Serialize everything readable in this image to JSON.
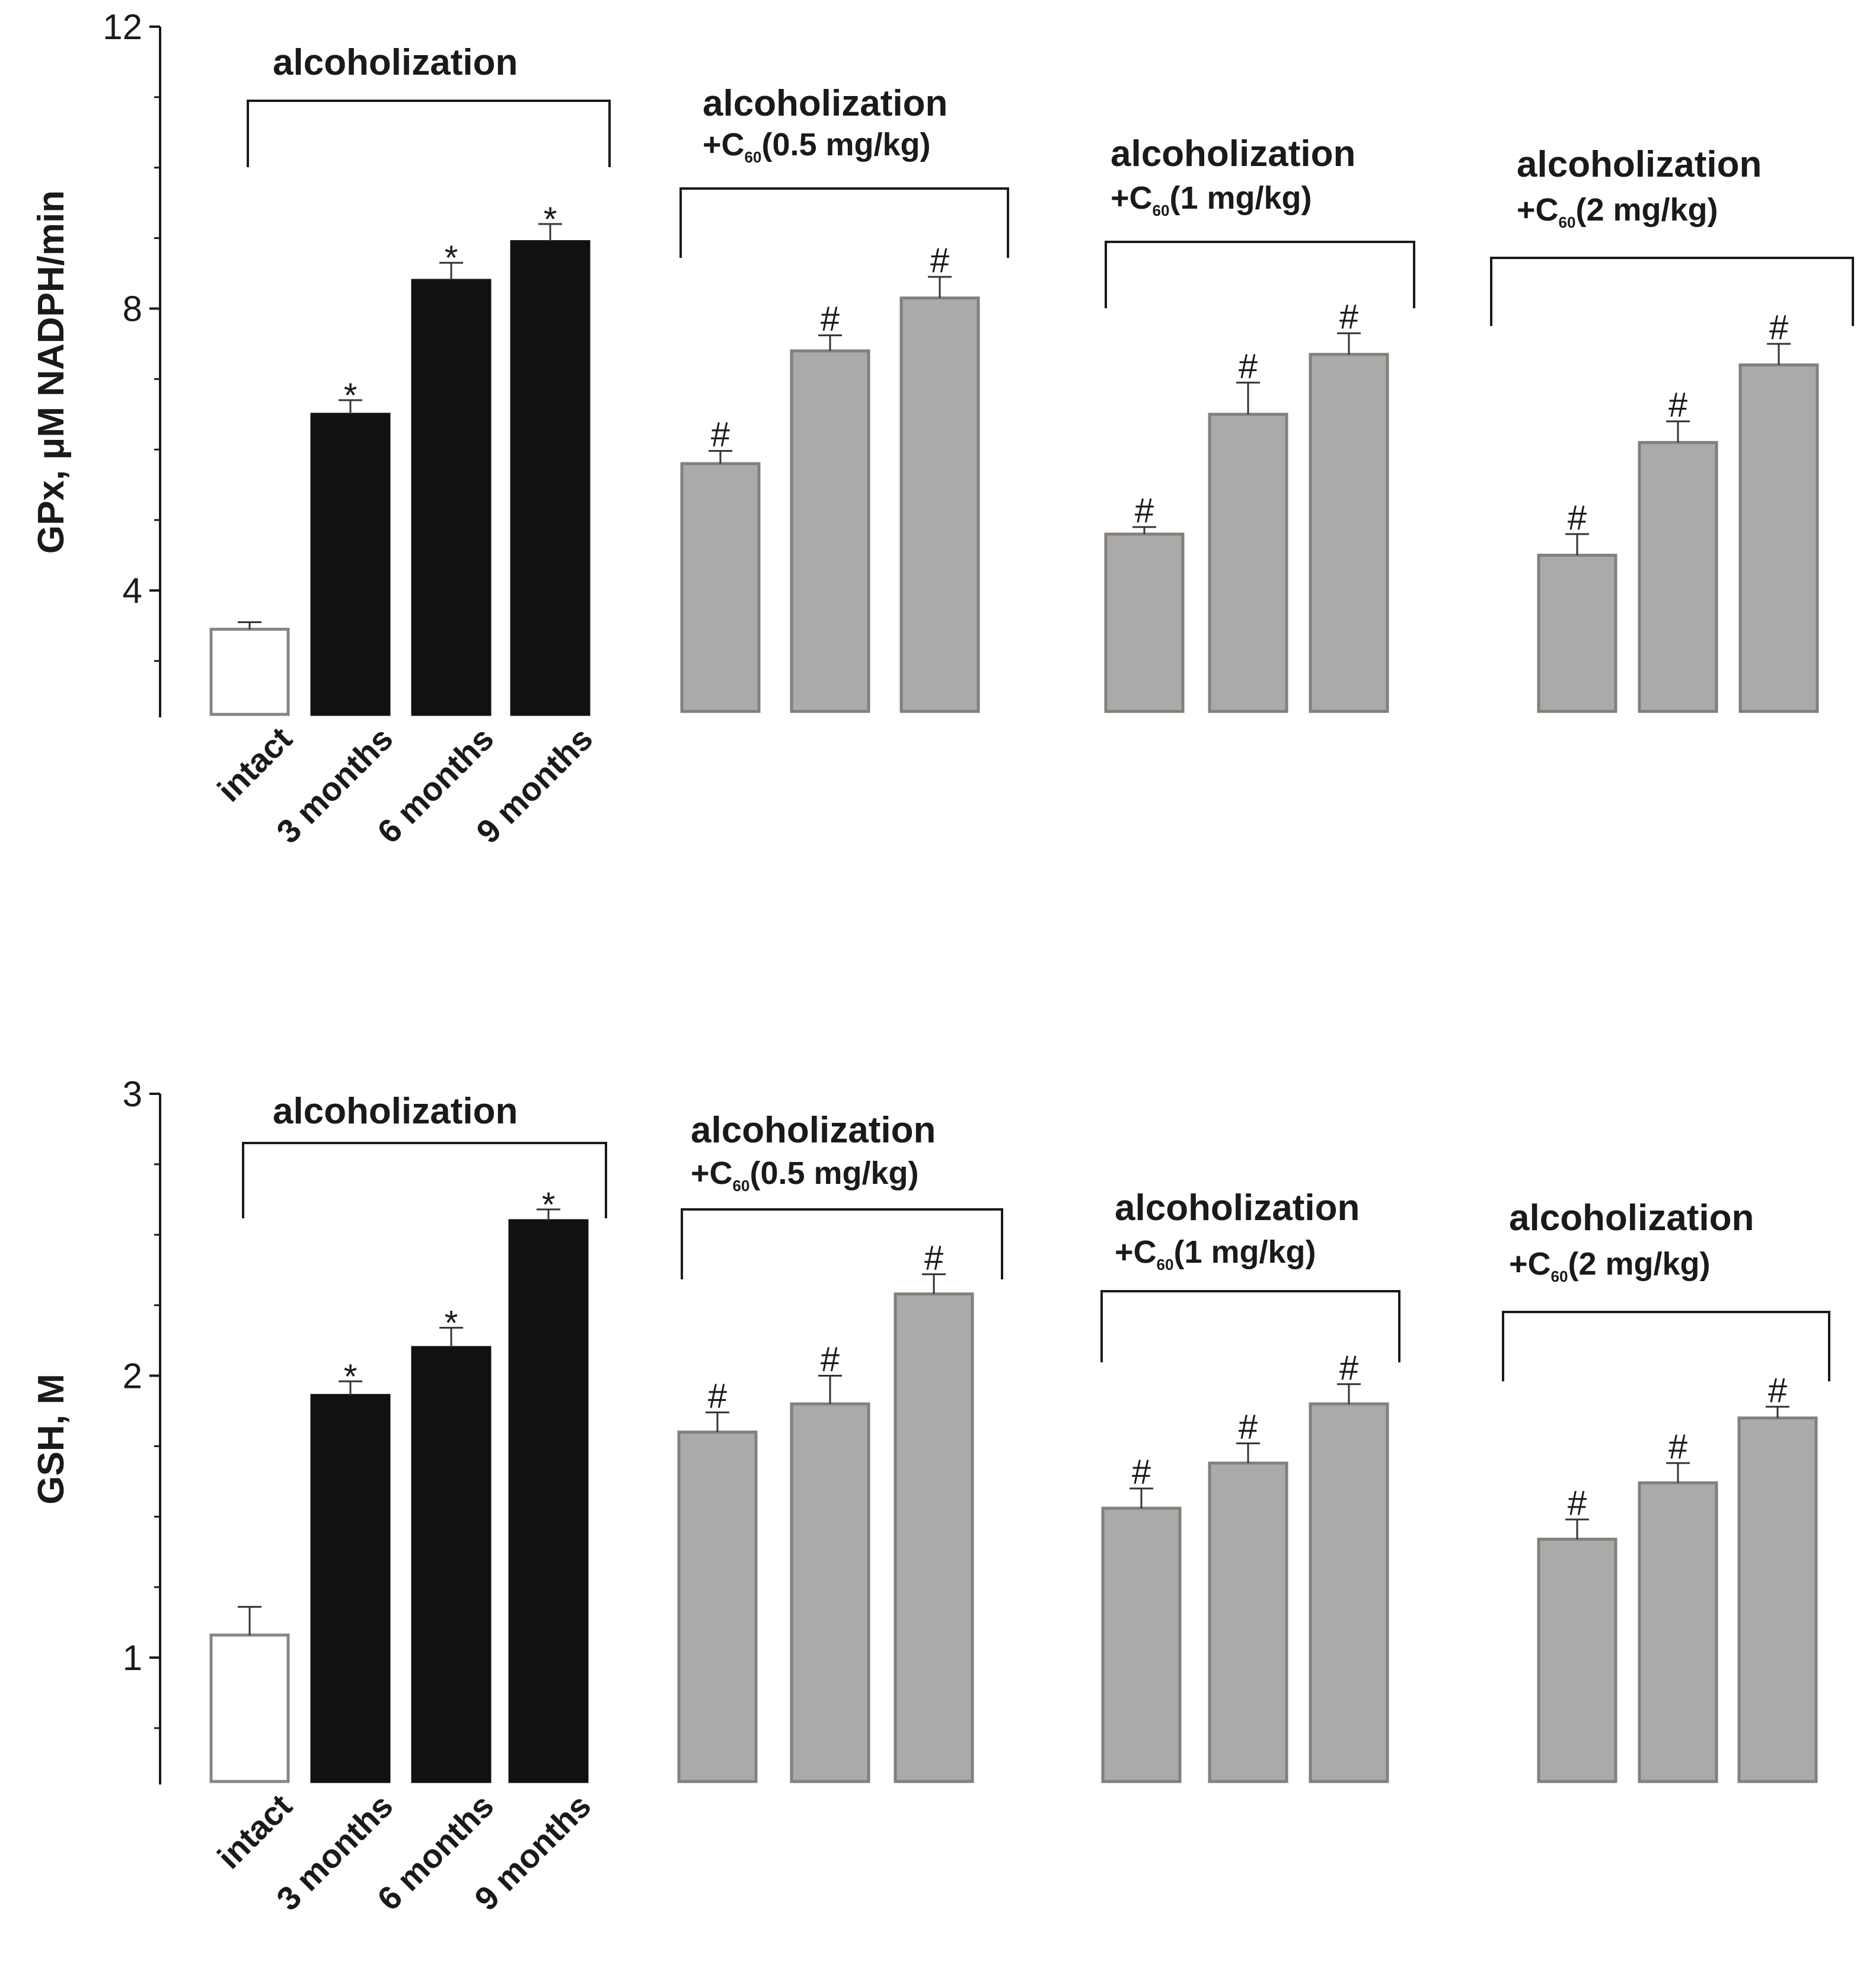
{
  "chart_data": [
    {
      "type": "bar",
      "ylabel": "GPx, μM NADPH/min",
      "ylim": [
        2.2,
        12
      ],
      "yticks": [
        4,
        8,
        12
      ],
      "minor_ticks": [
        3,
        5,
        6,
        7,
        9,
        10,
        11
      ],
      "categories": [
        "intact",
        "3 months",
        "6 months",
        "9 months"
      ],
      "groups": [
        {
          "title": "alcoholization",
          "subtitle_prefix": "",
          "subtitle_sub": "",
          "subtitle_suffix": "",
          "bars": [
            {
              "value": 3.45,
              "error": 0.1,
              "marker": "",
              "fill": "#ffffff",
              "stroke": "#8a8580"
            },
            {
              "value": 6.5,
              "error": 0.2,
              "marker": "*",
              "fill": "#111111",
              "stroke": "#111111"
            },
            {
              "value": 8.4,
              "error": 0.25,
              "marker": "*",
              "fill": "#111111",
              "stroke": "#111111"
            },
            {
              "value": 8.95,
              "error": 0.25,
              "marker": "*",
              "fill": "#111111",
              "stroke": "#111111"
            }
          ]
        },
        {
          "title": "alcoholization",
          "subtitle_prefix": "+C",
          "subtitle_sub": "60",
          "subtitle_suffix": "(0.5 mg/kg)",
          "bars": [
            {
              "value": 5.8,
              "error": 0.18,
              "marker": "#",
              "fill": "#aaaaaa",
              "stroke": "#857f78"
            },
            {
              "value": 7.4,
              "error": 0.22,
              "marker": "#",
              "fill": "#aaaaaa",
              "stroke": "#857f78"
            },
            {
              "value": 8.15,
              "error": 0.3,
              "marker": "#",
              "fill": "#aaaaaa",
              "stroke": "#857f78"
            }
          ]
        },
        {
          "title": "alcoholization",
          "subtitle_prefix": "+C",
          "subtitle_sub": "60",
          "subtitle_suffix": "(1 mg/kg)",
          "bars": [
            {
              "value": 4.8,
              "error": 0.1,
              "marker": "#",
              "fill": "#aaaaaa",
              "stroke": "#857f78"
            },
            {
              "value": 6.5,
              "error": 0.45,
              "marker": "#",
              "fill": "#aaaaaa",
              "stroke": "#857f78"
            },
            {
              "value": 7.35,
              "error": 0.3,
              "marker": "#",
              "fill": "#aaaaaa",
              "stroke": "#857f78"
            }
          ]
        },
        {
          "title": "alcoholization",
          "subtitle_prefix": "+C",
          "subtitle_sub": "60",
          "subtitle_suffix": "(2 mg/kg)",
          "bars": [
            {
              "value": 4.5,
              "error": 0.3,
              "marker": "#",
              "fill": "#aaaaaa",
              "stroke": "#857f78"
            },
            {
              "value": 6.1,
              "error": 0.3,
              "marker": "#",
              "fill": "#aaaaaa",
              "stroke": "#857f78"
            },
            {
              "value": 7.2,
              "error": 0.3,
              "marker": "#",
              "fill": "#aaaaaa",
              "stroke": "#857f78"
            }
          ]
        }
      ]
    },
    {
      "type": "bar",
      "ylabel": "GSH,   M",
      "ylim": [
        0.55,
        3
      ],
      "yticks": [
        1,
        2,
        3
      ],
      "minor_ticks": [
        0.75,
        1.25,
        1.5,
        1.75,
        2.25,
        2.5,
        2.75
      ],
      "categories": [
        "intact",
        "3 months",
        "6 months",
        "9 months"
      ],
      "groups": [
        {
          "title": "alcoholization",
          "subtitle_prefix": "",
          "subtitle_sub": "",
          "subtitle_suffix": "",
          "bars": [
            {
              "value": 1.08,
              "error": 0.1,
              "marker": "",
              "fill": "#ffffff",
              "stroke": "#8a8580"
            },
            {
              "value": 1.93,
              "error": 0.05,
              "marker": "*",
              "fill": "#111111",
              "stroke": "#111111"
            },
            {
              "value": 2.1,
              "error": 0.07,
              "marker": "*",
              "fill": "#111111",
              "stroke": "#111111"
            },
            {
              "value": 2.55,
              "error": 0.04,
              "marker": "*",
              "fill": "#111111",
              "stroke": "#111111"
            }
          ]
        },
        {
          "title": "alcoholization",
          "subtitle_prefix": "+C",
          "subtitle_sub": "60",
          "subtitle_suffix": "(0.5 mg/kg)",
          "bars": [
            {
              "value": 1.8,
              "error": 0.07,
              "marker": "#",
              "fill": "#aaaaaa",
              "stroke": "#857f78"
            },
            {
              "value": 1.9,
              "error": 0.1,
              "marker": "#",
              "fill": "#aaaaaa",
              "stroke": "#857f78"
            },
            {
              "value": 2.29,
              "error": 0.07,
              "marker": "#",
              "fill": "#aaaaaa",
              "stroke": "#857f78"
            }
          ]
        },
        {
          "title": "alcoholization",
          "subtitle_prefix": "+C",
          "subtitle_sub": "60",
          "subtitle_suffix": "(1 mg/kg)",
          "bars": [
            {
              "value": 1.53,
              "error": 0.07,
              "marker": "#",
              "fill": "#aaaaaa",
              "stroke": "#857f78"
            },
            {
              "value": 1.69,
              "error": 0.07,
              "marker": "#",
              "fill": "#aaaaaa",
              "stroke": "#857f78"
            },
            {
              "value": 1.9,
              "error": 0.07,
              "marker": "#",
              "fill": "#aaaaaa",
              "stroke": "#857f78"
            }
          ]
        },
        {
          "title": "alcoholization",
          "subtitle_prefix": "+C",
          "subtitle_sub": "60",
          "subtitle_suffix": "(2 mg/kg)",
          "bars": [
            {
              "value": 1.42,
              "error": 0.07,
              "marker": "#",
              "fill": "#aaaaaa",
              "stroke": "#857f78"
            },
            {
              "value": 1.62,
              "error": 0.07,
              "marker": "#",
              "fill": "#aaaaaa",
              "stroke": "#857f78"
            },
            {
              "value": 1.85,
              "error": 0.04,
              "marker": "#",
              "fill": "#aaaaaa",
              "stroke": "#857f78"
            }
          ]
        }
      ]
    }
  ]
}
